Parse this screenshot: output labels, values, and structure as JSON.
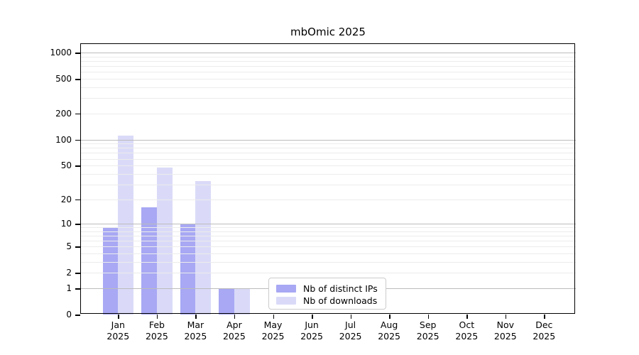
{
  "chart_data": {
    "type": "bar",
    "title": "mbOmic 2025",
    "x_year": "2025",
    "categories": [
      "Jan",
      "Feb",
      "Mar",
      "Apr",
      "May",
      "Jun",
      "Jul",
      "Aug",
      "Sep",
      "Oct",
      "Nov",
      "Dec"
    ],
    "series": [
      {
        "name": "Nb of distinct IPs",
        "color": "#a8a8f4",
        "values": [
          9,
          16,
          10,
          1,
          0,
          0,
          0,
          0,
          0,
          0,
          0,
          0
        ]
      },
      {
        "name": "Nb of downloads",
        "color": "#dadaf8",
        "values": [
          111,
          47,
          33,
          1,
          0,
          0,
          0,
          0,
          0,
          0,
          0,
          0
        ]
      }
    ],
    "y_scale": "log1p",
    "y_axis_max": 1280,
    "y_ticks": [
      0,
      1,
      2,
      5,
      10,
      20,
      50,
      100,
      200,
      500,
      1000
    ],
    "y_major_gridlines": [
      1,
      10,
      100,
      1000
    ],
    "grid": true,
    "legend_position": "lower center",
    "colors": {
      "bar_ips": "#a8a8f4",
      "bar_downloads": "#dadaf8",
      "major_grid": "#bcbcbc",
      "minor_grid": "#ececec",
      "axis_frame": "#000000",
      "legend_border": "#cccccc"
    }
  }
}
